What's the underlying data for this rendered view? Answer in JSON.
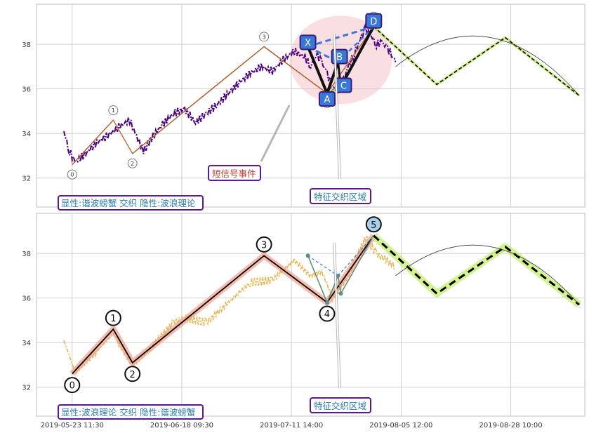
{
  "chart_data": [
    {
      "type": "line",
      "subtype": "candlestick-style price with wave annotations",
      "ylim": [
        30.7,
        39.8
      ],
      "yticks": [
        "32",
        "34",
        "36",
        "38"
      ],
      "xticks": [
        "2019-05-23 11:30",
        "2019-06-18 09:30",
        "2019-07-11 14:00",
        "2019-08-05 12:00",
        "2019-08-28 10:00"
      ],
      "grid": true,
      "colors": {
        "price": "#4b0082",
        "wave": "#8b4513",
        "harmonic": "#3a78d8",
        "forecast": "#000000",
        "forecast_band": "#b8e94a"
      },
      "series": [
        {
          "role": "price",
          "points": [
            [
              0,
              34.1
            ],
            [
              2,
              33.2
            ],
            [
              4,
              32.7
            ],
            [
              8,
              33.1
            ],
            [
              12,
              33.6
            ],
            [
              16,
              33.9
            ],
            [
              20,
              34.3
            ],
            [
              24,
              34.6
            ],
            [
              26,
              34.0
            ],
            [
              29,
              33.2
            ],
            [
              32,
              33.8
            ],
            [
              36,
              34.4
            ],
            [
              40,
              34.9
            ],
            [
              44,
              35.1
            ],
            [
              48,
              34.5
            ],
            [
              52,
              34.9
            ],
            [
              56,
              35.3
            ],
            [
              60,
              35.8
            ],
            [
              64,
              36.3
            ],
            [
              68,
              36.7
            ],
            [
              72,
              37.0
            ],
            [
              76,
              36.8
            ],
            [
              80,
              37.3
            ],
            [
              84,
              37.7
            ],
            [
              88,
              37.4
            ],
            [
              90,
              37.0
            ],
            [
              92,
              37.6
            ],
            [
              94,
              37.2
            ],
            [
              96,
              36.7
            ],
            [
              98,
              36.0
            ],
            [
              100,
              35.9
            ],
            [
              102,
              36.4
            ],
            [
              104,
              37.1
            ],
            [
              106,
              37.6
            ],
            [
              108,
              38.2
            ],
            [
              110,
              38.7
            ],
            [
              112,
              38.4
            ],
            [
              114,
              38.0
            ],
            [
              116,
              38.1
            ],
            [
              118,
              37.8
            ],
            [
              120,
              37.5
            ],
            [
              121,
              37.2
            ]
          ]
        },
        {
          "role": "wave",
          "points": [
            [
              3,
              32.6
            ],
            [
              18,
              34.6
            ],
            [
              25,
              33.1
            ],
            [
              73,
              37.9
            ],
            [
              96,
              35.8
            ],
            [
              113,
              38.8
            ]
          ],
          "labels": [
            "0",
            "1",
            "2",
            "3",
            "4",
            "5"
          ]
        },
        {
          "role": "forecast",
          "points": [
            [
              113,
              38.8
            ],
            [
              136,
              36.2
            ],
            [
              161,
              38.3
            ],
            [
              188,
              35.7
            ]
          ]
        },
        {
          "role": "harmonic",
          "points": [
            [
              "X",
              89,
              37.9
            ],
            [
              "A",
              96,
              35.8
            ],
            [
              "B",
              100,
              37.2
            ],
            [
              "C",
              101,
              36.1
            ],
            [
              "D",
              113,
              38.8
            ]
          ],
          "labels": [
            "X",
            "A",
            "B",
            "C",
            "D"
          ]
        }
      ],
      "event_labels": {
        "short_signal": "短信号事件",
        "zone": "特征交织区域"
      },
      "info": "显性:谐波螃蟹 交织 隐性:波浪理论"
    },
    {
      "type": "line",
      "subtype": "wave pattern overlay",
      "ylim": [
        30.7,
        39.8
      ],
      "yticks": [
        "32",
        "34",
        "36",
        "38"
      ],
      "xticks": [
        "2019-05-23 11:30",
        "2019-06-18 09:30",
        "2019-07-11 14:00",
        "2019-08-05 12:00",
        "2019-08-28 10:00"
      ],
      "grid": true,
      "colors": {
        "price": "#e8a830",
        "wave": "#000000",
        "wave_band": "#f1a08a",
        "harmonic": "#3a78d8",
        "forecast": "#000000",
        "forecast_band": "#b8e94a"
      },
      "series": [
        {
          "role": "wave",
          "points": [
            [
              3,
              32.6
            ],
            [
              18,
              34.6
            ],
            [
              25,
              33.1
            ],
            [
              73,
              37.9
            ],
            [
              96,
              35.8
            ],
            [
              113,
              38.8
            ]
          ],
          "labels": [
            "0",
            "1",
            "2",
            "3",
            "4",
            "5"
          ]
        },
        {
          "role": "forecast",
          "points": [
            [
              113,
              38.8
            ],
            [
              136,
              36.2
            ],
            [
              161,
              38.3
            ],
            [
              188,
              35.7
            ]
          ]
        }
      ],
      "event_labels": {
        "zone": "特征交织区域"
      },
      "info": "显性:波浪理论 交织 隐性:谐波螃蟹"
    }
  ]
}
